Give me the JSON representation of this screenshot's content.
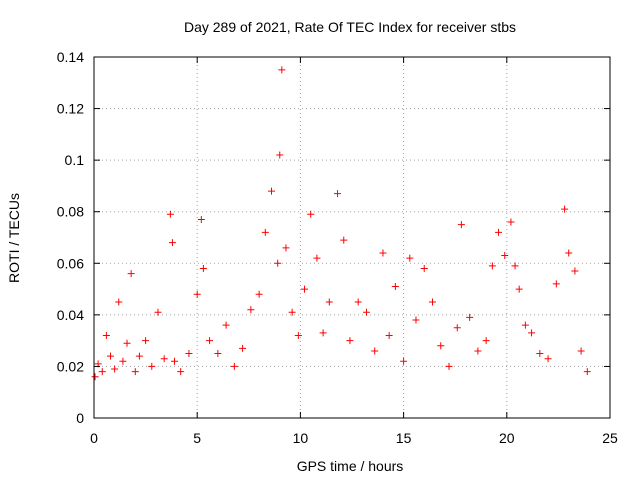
{
  "chart_data": {
    "type": "scatter",
    "title": "Day 289 of 2021, Rate Of TEC Index for receiver stbs",
    "xlabel": "GPS time / hours",
    "ylabel": "ROTI / TECUs",
    "xlim": [
      0,
      25
    ],
    "ylim": [
      0,
      0.14
    ],
    "x_ticks": [
      "0",
      "5",
      "10",
      "15",
      "20",
      "25"
    ],
    "y_ticks": [
      "0",
      "0.02",
      "0.04",
      "0.06",
      "0.08",
      "0.1",
      "0.12",
      "0.14"
    ],
    "grid": true,
    "marker": "+",
    "color": "#ff0000",
    "series": [
      {
        "x": [
          0.05,
          0.2,
          0.4,
          0.6,
          0.8,
          1.0,
          1.2,
          1.4,
          1.6,
          1.8,
          2.0,
          2.2,
          2.5,
          2.8,
          3.1,
          3.4,
          3.7,
          3.8,
          3.9,
          4.2,
          4.6,
          5.0,
          5.2,
          5.3,
          5.6,
          6.0,
          6.4,
          6.8,
          7.2,
          7.6,
          8.0,
          8.3,
          8.6,
          8.9,
          9.0,
          9.1,
          9.3,
          9.6,
          9.9,
          10.2,
          10.5,
          10.8,
          11.1,
          11.4,
          11.8,
          12.1,
          12.4,
          12.8,
          13.2,
          13.6,
          14.0,
          14.3,
          14.6,
          15.0,
          15.3,
          15.6,
          16.0,
          16.4,
          16.8,
          17.2,
          17.6,
          17.8,
          18.2,
          18.6,
          19.0,
          19.3,
          19.6,
          19.9,
          20.2,
          20.4,
          20.6,
          20.9,
          21.2,
          21.6,
          22.0,
          22.4,
          22.8,
          23.0,
          23.3,
          23.6,
          23.9
        ],
        "y": [
          0.016,
          0.021,
          0.018,
          0.032,
          0.024,
          0.019,
          0.045,
          0.022,
          0.029,
          0.056,
          0.018,
          0.024,
          0.03,
          0.02,
          0.041,
          0.023,
          0.079,
          0.068,
          0.022,
          0.018,
          0.025,
          0.048,
          0.077,
          0.058,
          0.03,
          0.025,
          0.036,
          0.02,
          0.027,
          0.042,
          0.048,
          0.072,
          0.088,
          0.06,
          0.102,
          0.135,
          0.066,
          0.041,
          0.032,
          0.05,
          0.079,
          0.062,
          0.033,
          0.045,
          0.087,
          0.069,
          0.03,
          0.045,
          0.041,
          0.026,
          0.064,
          0.032,
          0.051,
          0.022,
          0.062,
          0.038,
          0.058,
          0.045,
          0.028,
          0.02,
          0.035,
          0.075,
          0.039,
          0.026,
          0.03,
          0.059,
          0.072,
          0.063,
          0.076,
          0.059,
          0.05,
          0.036,
          0.033,
          0.025,
          0.023,
          0.052,
          0.081,
          0.064,
          0.057,
          0.026,
          0.018
        ]
      }
    ]
  }
}
